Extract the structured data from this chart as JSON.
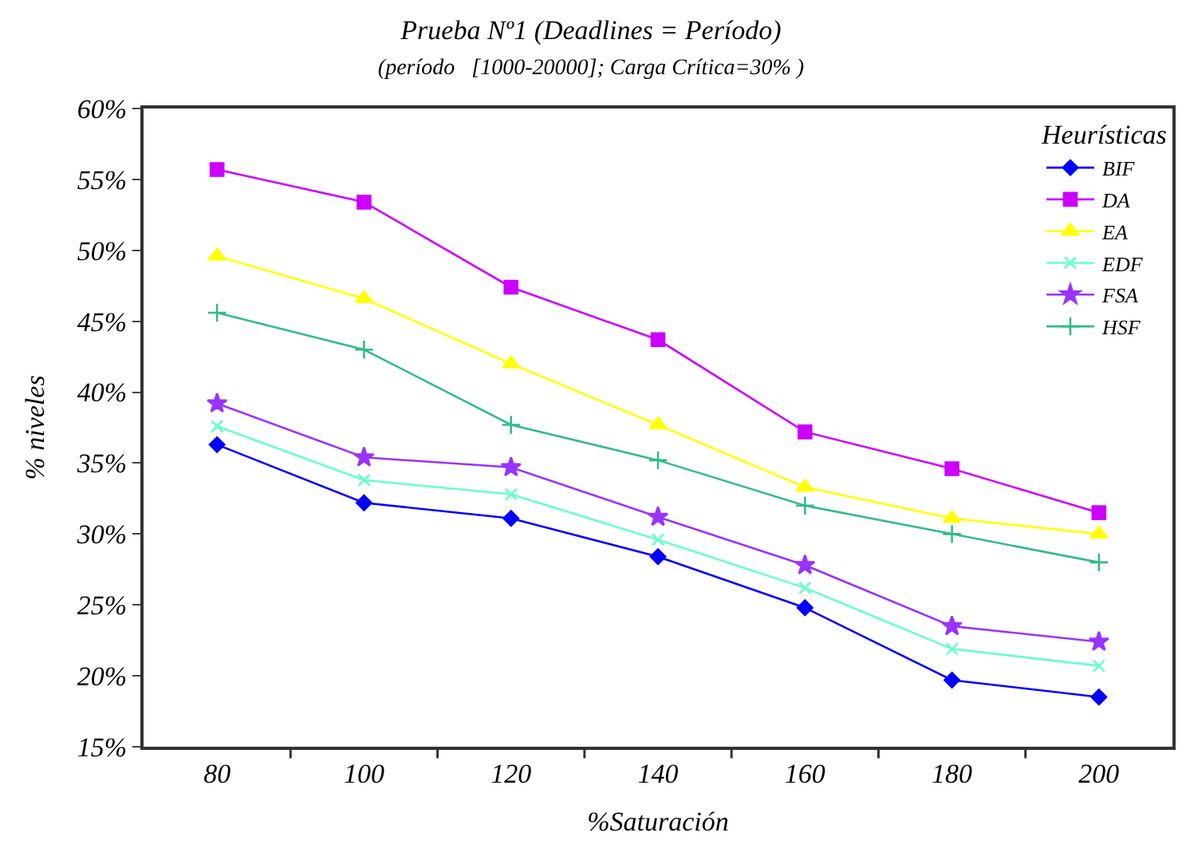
{
  "chart_data": {
    "type": "line",
    "title": "Prueba Nº1 (Deadlines = Período)",
    "subtitle": "(período   [1000-20000]; Carga Crítica=30% )",
    "xlabel": "%Saturación",
    "ylabel": "% niveles",
    "legend_title": "Heurísticas",
    "legend": "top right",
    "grid": false,
    "line_style": "solid",
    "categories": [
      "80",
      "100",
      "120",
      "140",
      "160",
      "180",
      "200"
    ],
    "ylim": [
      15,
      60
    ],
    "yticks": [
      {
        "value": 15,
        "label": "15%"
      },
      {
        "value": 20,
        "label": "20%"
      },
      {
        "value": 25,
        "label": "25%"
      },
      {
        "value": 30,
        "label": "30%"
      },
      {
        "value": 35,
        "label": "35%"
      },
      {
        "value": 40,
        "label": "40%"
      },
      {
        "value": 45,
        "label": "45%"
      },
      {
        "value": 50,
        "label": "50%"
      },
      {
        "value": 55,
        "label": "55%"
      },
      {
        "value": 60,
        "label": "60%"
      }
    ],
    "series": [
      {
        "name": "BIF",
        "color": "#0000ff",
        "marker": "diamond",
        "values": [
          36.3,
          32.2,
          31.1,
          28.4,
          24.8,
          19.7,
          18.5
        ]
      },
      {
        "name": "DA",
        "color": "#cc00ff",
        "marker": "square",
        "values": [
          55.7,
          53.4,
          47.4,
          43.7,
          37.2,
          34.6,
          31.5
        ]
      },
      {
        "name": "EA",
        "color": "#ffff00",
        "marker": "triangle",
        "values": [
          49.6,
          46.6,
          42.0,
          37.7,
          33.3,
          31.1,
          30.0
        ]
      },
      {
        "name": "EDF",
        "color": "#66ffcc",
        "marker": "x",
        "values": [
          37.6,
          33.8,
          32.8,
          29.6,
          26.2,
          21.9,
          20.7
        ]
      },
      {
        "name": "FSA",
        "color": "#9933ff",
        "marker": "star",
        "values": [
          39.2,
          35.4,
          34.7,
          31.2,
          27.8,
          23.5,
          22.4
        ]
      },
      {
        "name": "HSF",
        "color": "#33bb88",
        "marker": "cross",
        "values": [
          45.6,
          43.0,
          37.7,
          35.2,
          32.0,
          30.0,
          28.0
        ]
      }
    ]
  }
}
